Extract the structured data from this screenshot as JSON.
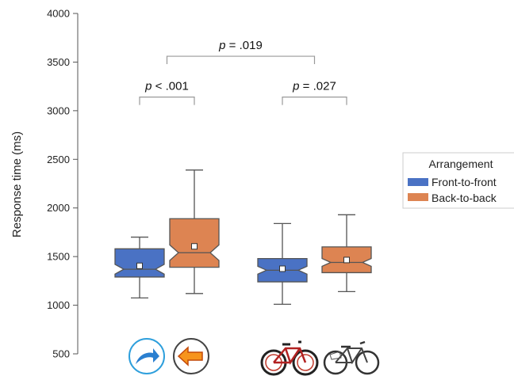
{
  "chart_data": {
    "type": "boxplot",
    "ylabel": "Response time (ms)",
    "xlabel": "",
    "ylim": [
      500,
      4000
    ],
    "yticks": [
      500,
      1000,
      1500,
      2000,
      2500,
      3000,
      3500,
      4000
    ],
    "grid": false,
    "categories": [
      "arrows",
      "bicycles"
    ],
    "legend": {
      "title": "Arrangement",
      "placement": "right",
      "entries": [
        {
          "name": "Front-to-front",
          "color": "#4a72c4"
        },
        {
          "name": "Back-to-back",
          "color": "#dd8452"
        }
      ]
    },
    "series": [
      {
        "name": "Front-to-front",
        "color": "#4a72c4",
        "boxes": [
          {
            "category": "arrows",
            "whisker_low": 1075,
            "q1": 1290,
            "median": 1370,
            "q3": 1580,
            "whisker_high": 1700,
            "mean": 1405,
            "notch_low": 1320,
            "notch_high": 1420
          },
          {
            "category": "bicycles",
            "whisker_low": 1010,
            "q1": 1240,
            "median": 1360,
            "q3": 1480,
            "whisker_high": 1840,
            "mean": 1375,
            "notch_low": 1320,
            "notch_high": 1400
          }
        ]
      },
      {
        "name": "Back-to-back",
        "color": "#dd8452",
        "boxes": [
          {
            "category": "arrows",
            "whisker_low": 1120,
            "q1": 1390,
            "median": 1540,
            "q3": 1890,
            "whisker_high": 2390,
            "mean": 1605,
            "notch_low": 1460,
            "notch_high": 1620
          },
          {
            "category": "bicycles",
            "whisker_low": 1140,
            "q1": 1335,
            "median": 1440,
            "q3": 1600,
            "whisker_high": 1930,
            "mean": 1465,
            "notch_low": 1400,
            "notch_high": 1480
          }
        ]
      }
    ],
    "annotations": [
      {
        "text": "p < .001",
        "from": "arrows:Front-to-front",
        "to": "arrows:Back-to-back",
        "level": 3140
      },
      {
        "text": "p = .027",
        "from": "bicycles:Front-to-front",
        "to": "bicycles:Back-to-back",
        "level": 3140
      },
      {
        "text": "p = .019",
        "from": "arrows",
        "to": "bicycles",
        "level": 3560
      }
    ],
    "category_icons": [
      {
        "category": "arrows",
        "icons": [
          "arrow-right-icon",
          "arrow-left-icon"
        ]
      },
      {
        "category": "bicycles",
        "icons": [
          "bicycle-icon",
          "bicycle-icon"
        ]
      }
    ]
  }
}
